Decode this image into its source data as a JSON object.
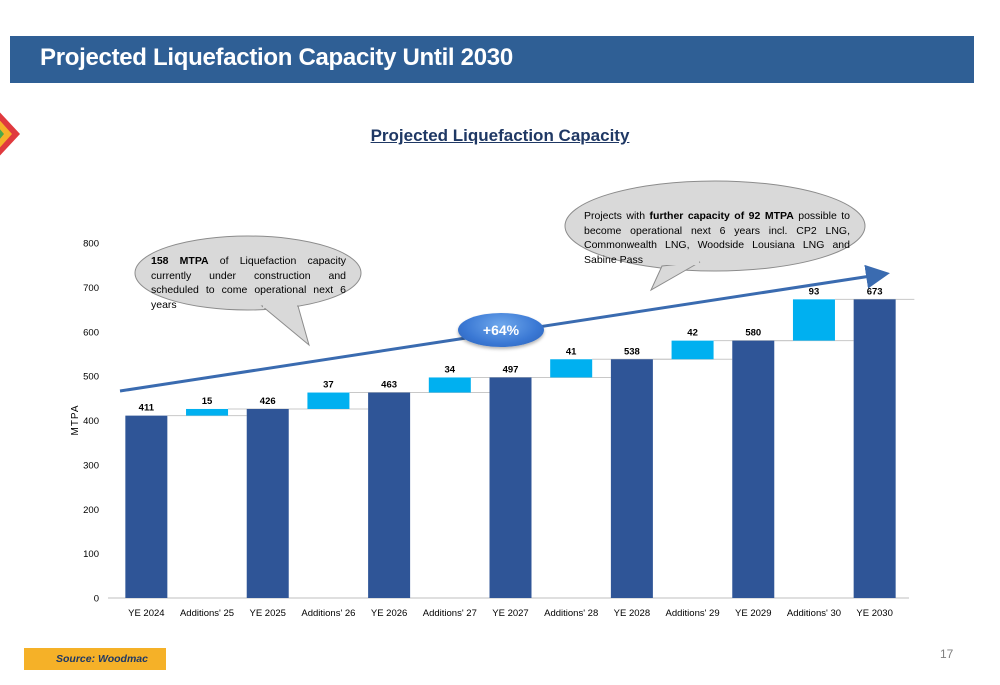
{
  "header": {
    "title": "Projected Liquefaction Capacity Until 2030"
  },
  "chart_data": {
    "type": "bar",
    "subtype": "waterfall",
    "title": "Projected Liquefaction Capacity",
    "xlabel": "",
    "ylabel": "MTPA",
    "ylim": [
      0,
      800
    ],
    "yticks": [
      0,
      100,
      200,
      300,
      400,
      500,
      600,
      700,
      800
    ],
    "grid": false,
    "categories": [
      "YE 2024",
      "Additions' 25",
      "YE 2025",
      "Additions' 26",
      "YE 2026",
      "Additions' 27",
      "YE 2027",
      "Additions' 28",
      "YE 2028",
      "Additions' 29",
      "YE 2029",
      "Additions' 30",
      "YE 2030"
    ],
    "bars": [
      {
        "kind": "total",
        "value": 411
      },
      {
        "kind": "addition",
        "value": 15,
        "base": 411
      },
      {
        "kind": "total",
        "value": 426
      },
      {
        "kind": "addition",
        "value": 37,
        "base": 426
      },
      {
        "kind": "total",
        "value": 463
      },
      {
        "kind": "addition",
        "value": 34,
        "base": 463
      },
      {
        "kind": "total",
        "value": 497
      },
      {
        "kind": "addition",
        "value": 41,
        "base": 497
      },
      {
        "kind": "total",
        "value": 538
      },
      {
        "kind": "addition",
        "value": 42,
        "base": 538
      },
      {
        "kind": "total",
        "value": 580
      },
      {
        "kind": "addition",
        "value": 93,
        "base": 580
      },
      {
        "kind": "total",
        "value": 673
      }
    ],
    "colors": {
      "total": "#2f5597",
      "addition": "#00b0f0",
      "trend": "#3a6bb0"
    },
    "trend_badge": "+64%",
    "annotations": [
      {
        "bold": "158 MTPA",
        "text": " of Liquefaction capacity currently under construction and scheduled to come operational next 6 years"
      },
      {
        "lead": "Projects with ",
        "bold": "further capacity of 92 MTPA",
        "text": " possible to become operational next 6 years incl. CP2 LNG, Commonwealth LNG, Woodside Lousiana LNG and Sabine Pass"
      }
    ]
  },
  "footer": {
    "source": "Source: Woodmac",
    "page_number": "17"
  }
}
